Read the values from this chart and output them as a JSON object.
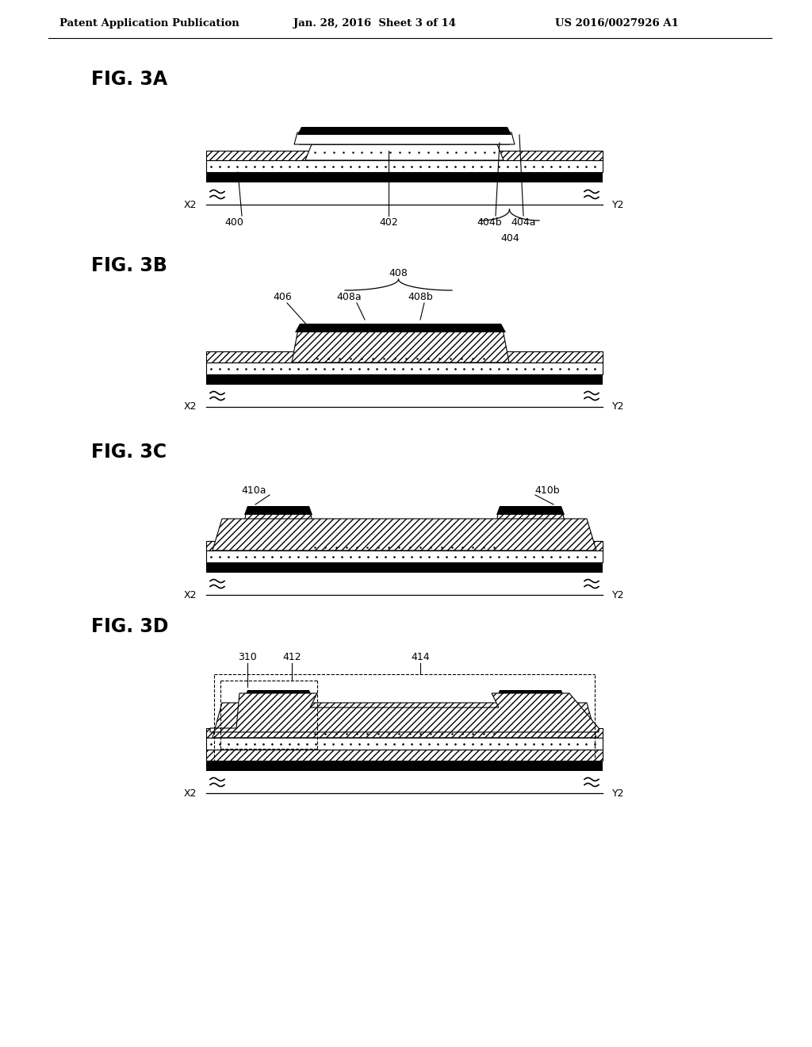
{
  "bg_color": "#ffffff",
  "header_left": "Patent Application Publication",
  "header_mid": "Jan. 28, 2016  Sheet 3 of 14",
  "header_right": "US 2016/0027926 A1"
}
